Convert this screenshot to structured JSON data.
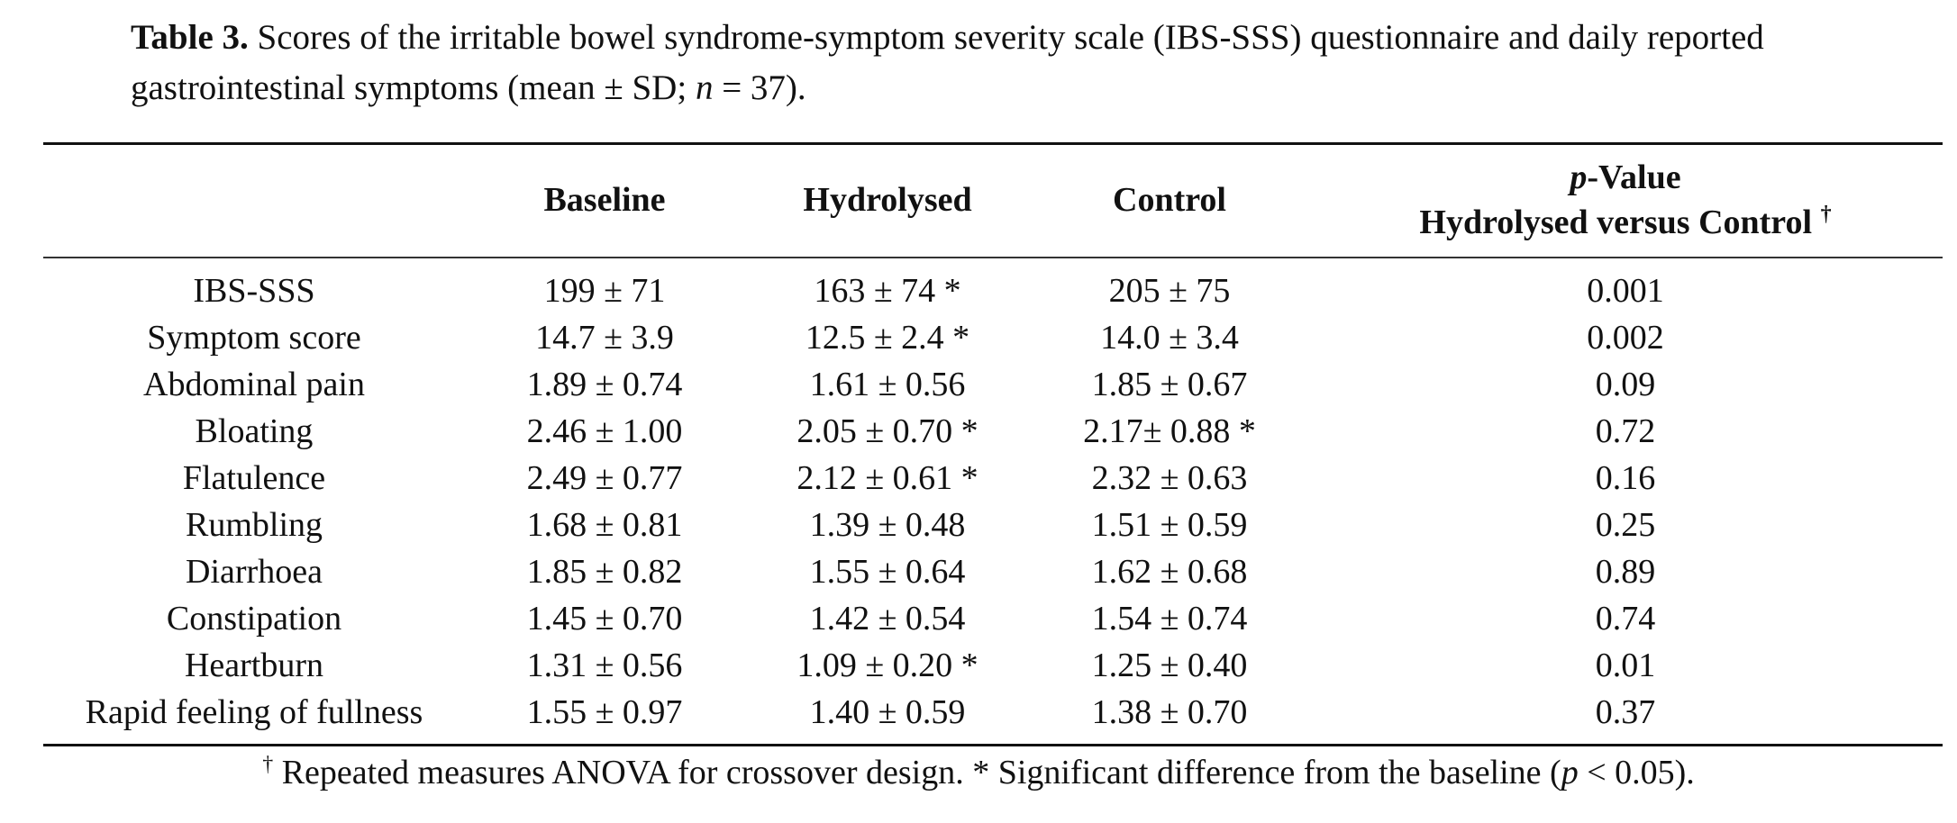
{
  "caption": {
    "label": "Table 3.",
    "text_before_n": " Scores of the irritable bowel syndrome-symptom severity scale (IBS-SSS) questionnaire and daily reported gastrointestinal symptoms (mean ± SD; ",
    "n_symbol": "n",
    "text_after_n": " = 37)."
  },
  "table": {
    "headers": {
      "col0": "",
      "col1": "Baseline",
      "col2": "Hydrolysed",
      "col3": "Control",
      "col4_line1_p": "p",
      "col4_line1_rest": "-Value",
      "col4_line2": "Hydrolysed versus Control",
      "col4_dagger": "†"
    },
    "rows": [
      {
        "label": "IBS-SSS",
        "baseline": "199 ± 71",
        "hydrolysed": "163 ± 74 *",
        "control": "205 ± 75",
        "p_value": "0.001"
      },
      {
        "label": "Symptom score",
        "baseline": "14.7 ± 3.9",
        "hydrolysed": "12.5 ± 2.4 *",
        "control": "14.0 ± 3.4",
        "p_value": "0.002"
      },
      {
        "label": "Abdominal pain",
        "baseline": "1.89 ± 0.74",
        "hydrolysed": "1.61 ± 0.56",
        "control": "1.85 ± 0.67",
        "p_value": "0.09"
      },
      {
        "label": "Bloating",
        "baseline": "2.46 ± 1.00",
        "hydrolysed": "2.05 ± 0.70 *",
        "control": "2.17± 0.88 *",
        "p_value": "0.72"
      },
      {
        "label": "Flatulence",
        "baseline": "2.49 ± 0.77",
        "hydrolysed": "2.12 ± 0.61 *",
        "control": "2.32 ± 0.63",
        "p_value": "0.16"
      },
      {
        "label": "Rumbling",
        "baseline": "1.68 ± 0.81",
        "hydrolysed": "1.39 ± 0.48",
        "control": "1.51 ± 0.59",
        "p_value": "0.25"
      },
      {
        "label": "Diarrhoea",
        "baseline": "1.85 ± 0.82",
        "hydrolysed": "1.55 ± 0.64",
        "control": "1.62 ± 0.68",
        "p_value": "0.89"
      },
      {
        "label": "Constipation",
        "baseline": "1.45 ± 0.70",
        "hydrolysed": "1.42 ± 0.54",
        "control": "1.54 ± 0.74",
        "p_value": "0.74"
      },
      {
        "label": "Heartburn",
        "baseline": "1.31 ± 0.56",
        "hydrolysed": "1.09 ± 0.20 *",
        "control": "1.25 ± 0.40",
        "p_value": "0.01"
      },
      {
        "label": "Rapid feeling of fullness",
        "baseline": "1.55 ± 0.97",
        "hydrolysed": "1.40 ± 0.59",
        "control": "1.38 ± 0.70",
        "p_value": "0.37"
      }
    ]
  },
  "footnote": {
    "dagger": "†",
    "text1": " Repeated measures ANOVA for crossover design. * Significant difference from the baseline (",
    "p_symbol": "p",
    "text2": " < 0.05)."
  }
}
